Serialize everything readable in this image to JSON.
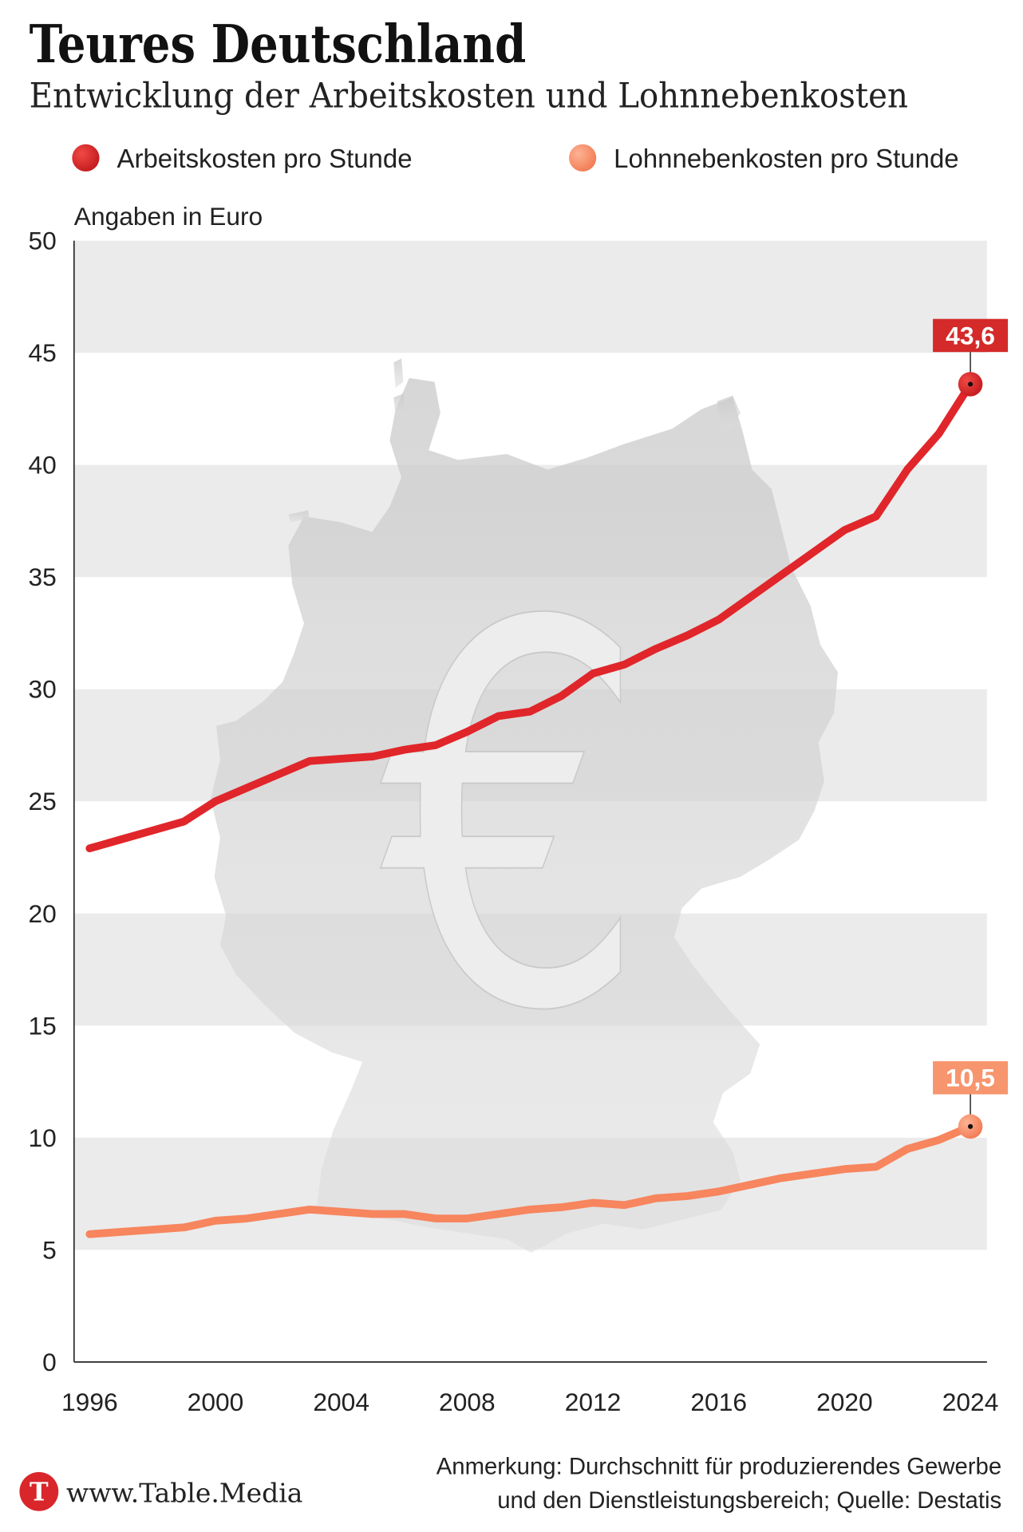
{
  "title": "Teures Deutschland",
  "subtitle": "Entwicklung der Arbeitskosten und Lohnnebenkosten",
  "legend": [
    {
      "label": "Arbeitskosten pro Stunde",
      "color": "#e0262a"
    },
    {
      "label": "Lohnnebenkosten pro Stunde",
      "color": "#f7855e"
    }
  ],
  "unit_note": "Angaben in Euro",
  "background": {
    "symbol": "€"
  },
  "chart_data": {
    "type": "line",
    "x": [
      1996,
      1997,
      1998,
      1999,
      2000,
      2001,
      2002,
      2003,
      2004,
      2005,
      2006,
      2007,
      2008,
      2009,
      2010,
      2011,
      2012,
      2013,
      2014,
      2015,
      2016,
      2017,
      2018,
      2019,
      2020,
      2021,
      2022,
      2023,
      2024
    ],
    "x_ticks": [
      1996,
      2000,
      2004,
      2008,
      2012,
      2016,
      2020,
      2024
    ],
    "y_ticks": [
      0,
      5,
      10,
      15,
      20,
      25,
      30,
      35,
      40,
      45,
      50
    ],
    "xlim": [
      1996,
      2024
    ],
    "ylim": [
      0,
      50
    ],
    "grid": true,
    "band_color": "#ebebeb",
    "series": [
      {
        "name": "Arbeitskosten pro Stunde",
        "color": "#e0262a",
        "label_color": "#d42a2a",
        "values": [
          22.9,
          23.3,
          23.7,
          24.1,
          25.0,
          25.6,
          26.2,
          26.8,
          26.9,
          27.0,
          27.3,
          27.5,
          28.1,
          28.8,
          29.0,
          29.7,
          30.7,
          31.1,
          31.8,
          32.4,
          33.1,
          34.1,
          35.1,
          36.1,
          37.1,
          37.7,
          39.8,
          41.4,
          43.6
        ],
        "end_label": "43,6"
      },
      {
        "name": "Lohnnebenkosten pro Stunde",
        "color": "#f7855e",
        "label_color": "#f7956e",
        "values": [
          5.7,
          5.8,
          5.9,
          6.0,
          6.3,
          6.4,
          6.6,
          6.8,
          6.7,
          6.6,
          6.6,
          6.4,
          6.4,
          6.6,
          6.8,
          6.9,
          7.1,
          7.0,
          7.3,
          7.4,
          7.6,
          7.9,
          8.2,
          8.4,
          8.6,
          8.7,
          9.5,
          9.9,
          10.5
        ],
        "end_label": "10,5"
      }
    ]
  },
  "footer": {
    "logo_letter": "T",
    "site": "www.Table.Media",
    "note_line1": "Anmerkung: Durchschnitt für produzierendes Gewerbe",
    "note_line2": "und den Dienstleistungsbereich; Quelle: Destatis"
  }
}
